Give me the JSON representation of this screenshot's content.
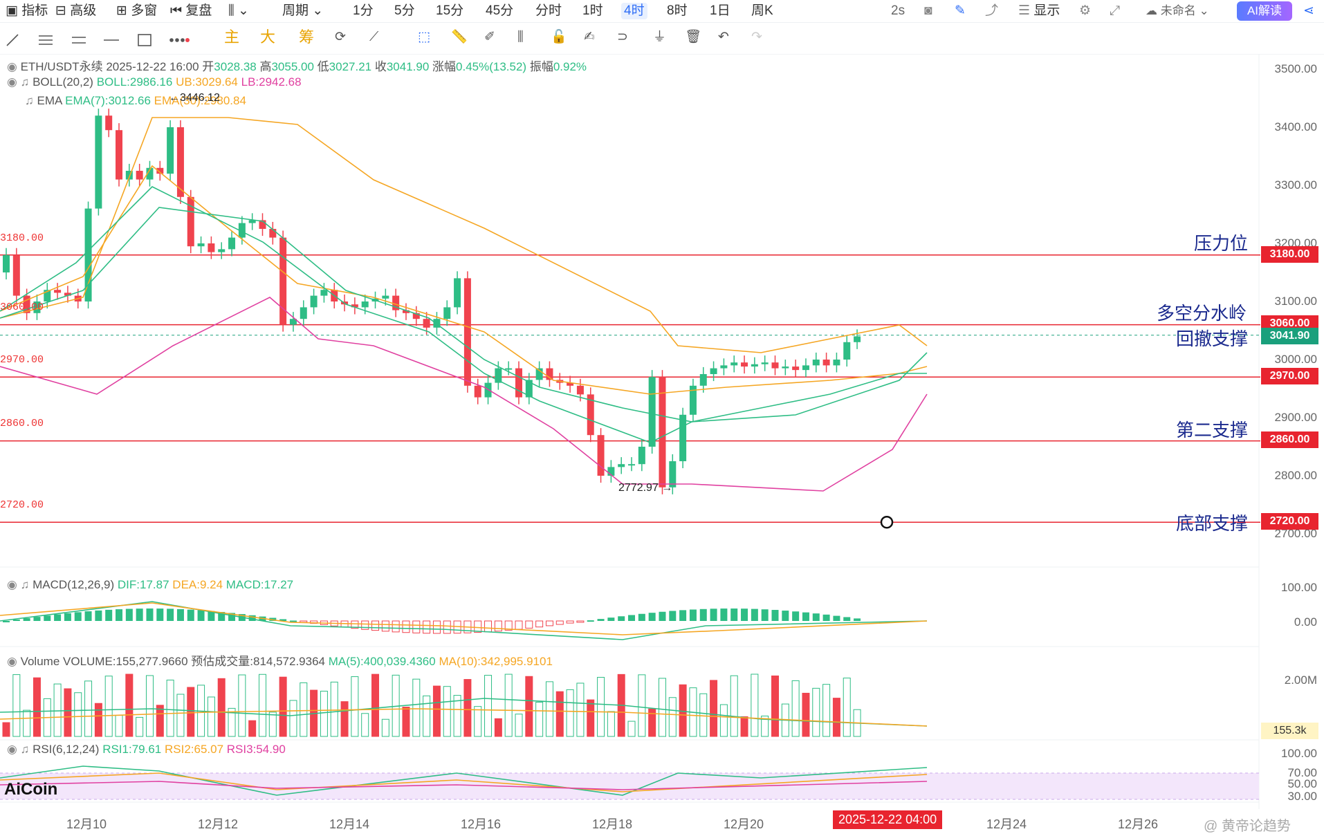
{
  "topbar": {
    "items": [
      "指标",
      "高级",
      "多窗",
      "复盘"
    ],
    "period_label": "周期",
    "periods": [
      "1分",
      "5分",
      "15分",
      "45分",
      "分时",
      "1时",
      "4时",
      "8时",
      "1日",
      "周K"
    ],
    "active_period": "4时",
    "right": {
      "interval": "2s",
      "display": "显示",
      "name": "未命名",
      "ai": "AI解读"
    }
  },
  "toolbar2": {
    "main": "主",
    "big": "大",
    "chip": "筹"
  },
  "legend": {
    "symbol": "ETH/USDT永续",
    "datetime": "2025-12-22 16:00",
    "open_label": "开",
    "open": "3028.38",
    "high_label": "高",
    "high": "3055.00",
    "low_label": "低",
    "low": "3027.21",
    "close_label": "收",
    "close": "3041.90",
    "change_label": "涨幅",
    "change": "0.45%(13.52)",
    "amp_label": "振幅",
    "amp": "0.92%",
    "boll": "BOLL(20,2)",
    "boll_mid": "BOLL:2986.16",
    "boll_ub": "UB:3029.64",
    "boll_lb": "LB:2942.68",
    "ema": "EMA",
    "ema7": "EMA(7):3012.66",
    "ema30": "EMA(30):2980.84",
    "high_mark": "3446.12",
    "low_mark": "2772.97"
  },
  "macd": {
    "label": "MACD(12,26,9)",
    "dif": "DIF:17.87",
    "dea": "DEA:9.24",
    "macd": "MACD:17.27",
    "y_top": "100.00",
    "y_zero": "0.00"
  },
  "volume": {
    "label": "Volume",
    "value": "VOLUME:155,277.9660",
    "est": "预估成交量:814,572.9364",
    "ma5": "MA(5):400,039.4360",
    "ma10": "MA(10):342,995.9101",
    "y_top": "2.00M",
    "tag": "155.3k"
  },
  "rsi": {
    "label": "RSI(6,12,24)",
    "rsi1": "RSI1:79.61",
    "rsi2": "RSI2:65.07",
    "rsi3": "RSI3:54.90",
    "y": [
      "100.00",
      "70.00",
      "50.00",
      "30.00"
    ]
  },
  "price_axis": [
    "3500.00",
    "3400.00",
    "3300.00",
    "3200.00",
    "3100.00",
    "3000.00",
    "2900.00",
    "2800.00",
    "2700.00"
  ],
  "levels": [
    {
      "price": "3180.00",
      "left": "3180.00",
      "note": "压力位"
    },
    {
      "price": "3060.00",
      "left": "3060.00",
      "note": "多空分水岭"
    },
    {
      "price": "2970.00",
      "left": "2970.00",
      "note": ""
    },
    {
      "price": "2860.00",
      "left": "2860.00",
      "note": "第二支撑"
    },
    {
      "price": "2720.00",
      "left": "2720.00",
      "note": "底部支撑"
    }
  ],
  "current_price": "3041.90",
  "pullback_note": "回撤支撑",
  "x_axis": [
    "12月10",
    "12月12",
    "12月14",
    "12月16",
    "12月18",
    "12月20",
    "12月24",
    "12月26"
  ],
  "x_cursor": "2025-12-22 04:00",
  "brand": "AiCoin",
  "watermark": "@ 黄帝论趋势",
  "colors": {
    "up": "#2ebd85",
    "down": "#f0434e",
    "level": "#e8242f",
    "annot": "#1b2a8e",
    "accent": "#2f6ef6"
  }
}
